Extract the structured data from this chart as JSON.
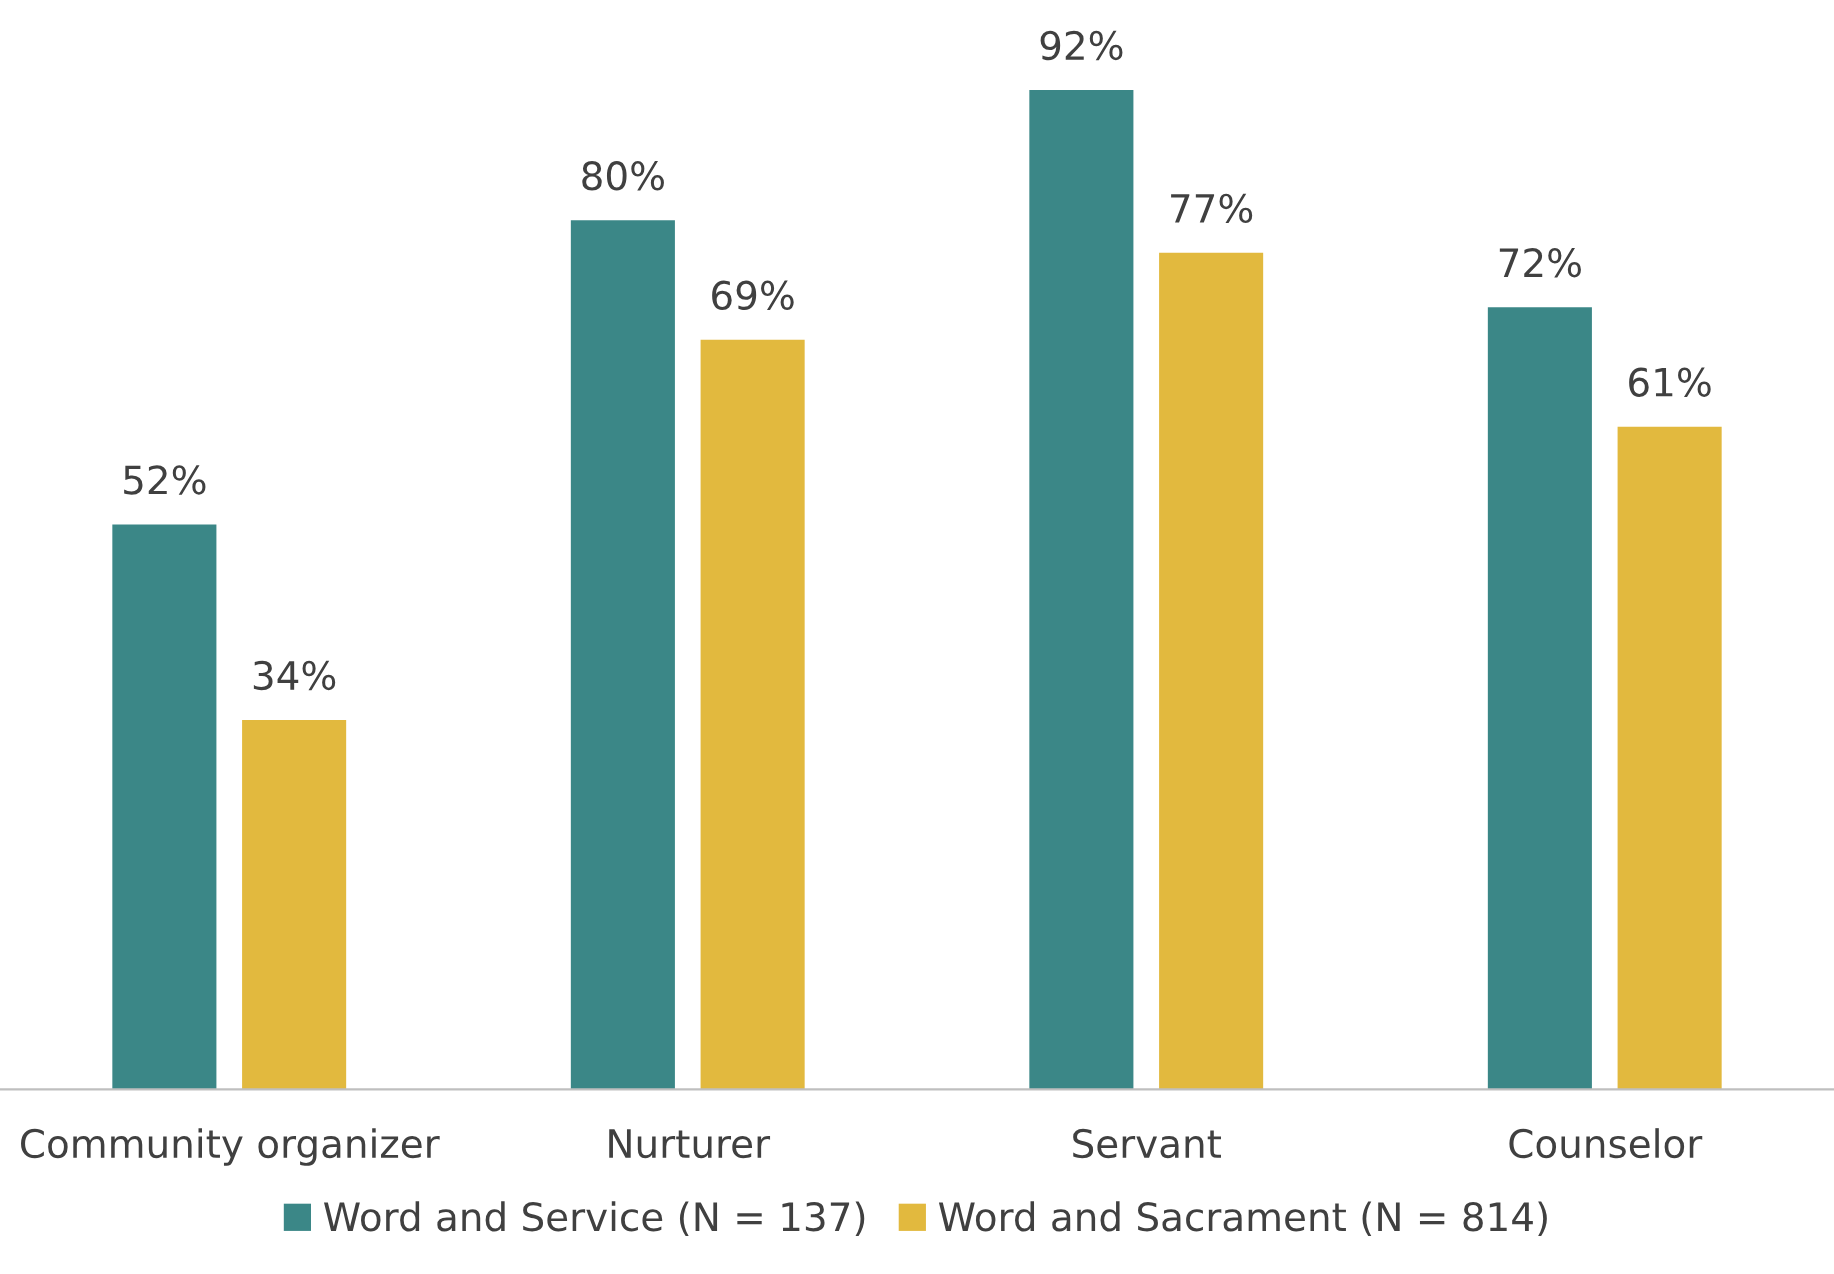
{
  "chart_data": {
    "type": "bar",
    "categories": [
      "Community organizer",
      "Nurturer",
      "Servant",
      "Counselor"
    ],
    "series": [
      {
        "name": "Word and Service (N = 137)",
        "color": "#3b8787",
        "values": [
          52,
          80,
          92,
          72
        ],
        "value_labels": [
          "52%",
          "80%",
          "92%",
          "72%"
        ]
      },
      {
        "name": "Word and Sacrament (N = 814)",
        "color": "#e2b93e",
        "values": [
          34,
          69,
          77,
          61
        ],
        "value_labels": [
          "34%",
          "69%",
          "77%",
          "61%"
        ]
      }
    ],
    "legend": "bottom",
    "grid": false
  }
}
